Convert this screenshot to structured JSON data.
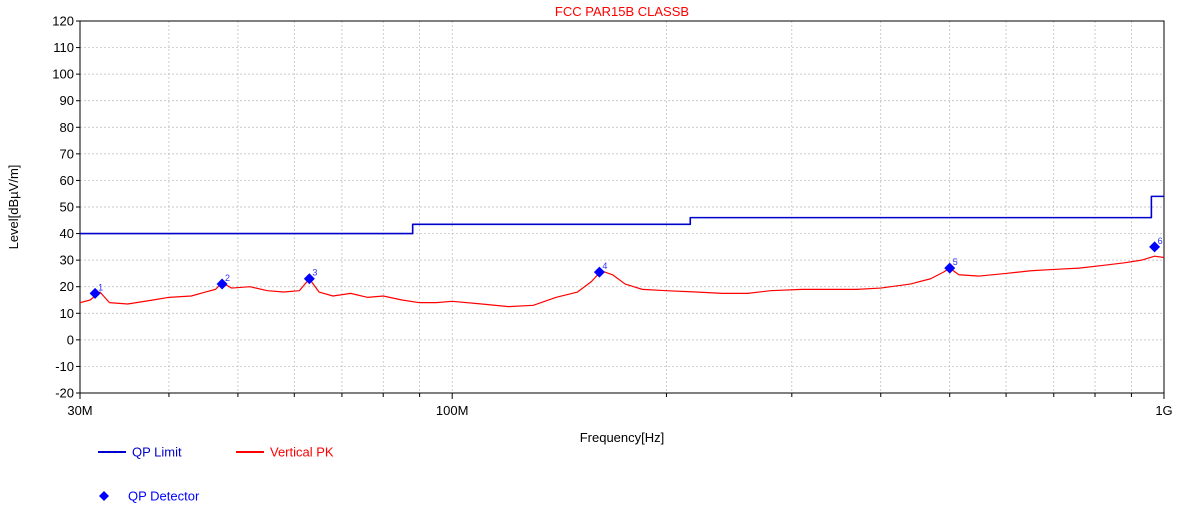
{
  "chart_data": {
    "type": "line",
    "title": "FCC PAR15B CLASSB",
    "xlabel": "Frequency[Hz]",
    "ylabel": "Level[dBµV/m]",
    "x_scale": "log",
    "xlim": [
      30000000,
      1000000000
    ],
    "ylim": [
      -20,
      120
    ],
    "y_ticks": [
      -20,
      -10,
      0,
      10,
      20,
      30,
      40,
      50,
      60,
      70,
      80,
      90,
      100,
      110,
      120
    ],
    "x_ticks": [
      {
        "value": 30000000,
        "label": "30M"
      },
      {
        "value": 100000000,
        "label": "100M"
      },
      {
        "value": 1000000000,
        "label": "1G"
      }
    ],
    "x_minor_ticks": [
      40000000,
      50000000,
      60000000,
      70000000,
      80000000,
      90000000,
      200000000,
      300000000,
      400000000,
      500000000,
      600000000,
      700000000,
      800000000,
      900000000
    ],
    "grid": true,
    "colors": {
      "limit": "#0000cc",
      "peak": "#ff0000",
      "detector": "#0000ff",
      "title": "#ff0000"
    },
    "series": [
      {
        "name": "QP Limit",
        "kind": "step",
        "points": [
          [
            30000000,
            40
          ],
          [
            88000000,
            40
          ],
          [
            88000000,
            43.5
          ],
          [
            216000000,
            43.5
          ],
          [
            216000000,
            46
          ],
          [
            960000000,
            46
          ],
          [
            960000000,
            54
          ],
          [
            1000000000,
            54
          ]
        ]
      },
      {
        "name": "Vertical PK",
        "kind": "line",
        "points": [
          [
            30000000,
            14
          ],
          [
            31000000,
            15
          ],
          [
            32000000,
            18
          ],
          [
            33000000,
            14
          ],
          [
            35000000,
            13.5
          ],
          [
            38000000,
            15
          ],
          [
            40000000,
            16
          ],
          [
            43000000,
            16.5
          ],
          [
            45000000,
            18
          ],
          [
            46500000,
            19
          ],
          [
            47500000,
            21.5
          ],
          [
            49000000,
            19.5
          ],
          [
            52000000,
            20
          ],
          [
            55000000,
            18.5
          ],
          [
            58000000,
            18
          ],
          [
            61000000,
            18.5
          ],
          [
            63000000,
            23
          ],
          [
            65000000,
            18
          ],
          [
            68000000,
            16.5
          ],
          [
            72000000,
            17.5
          ],
          [
            76000000,
            16
          ],
          [
            80000000,
            16.5
          ],
          [
            85000000,
            15
          ],
          [
            90000000,
            14
          ],
          [
            95000000,
            14
          ],
          [
            100000000,
            14.5
          ],
          [
            110000000,
            13.5
          ],
          [
            120000000,
            12.5
          ],
          [
            130000000,
            13
          ],
          [
            140000000,
            16
          ],
          [
            150000000,
            18
          ],
          [
            157000000,
            22
          ],
          [
            162000000,
            26
          ],
          [
            168000000,
            24.5
          ],
          [
            175000000,
            21
          ],
          [
            185000000,
            19
          ],
          [
            200000000,
            18.5
          ],
          [
            220000000,
            18
          ],
          [
            240000000,
            17.5
          ],
          [
            260000000,
            17.5
          ],
          [
            280000000,
            18.5
          ],
          [
            310000000,
            19
          ],
          [
            340000000,
            19
          ],
          [
            370000000,
            19
          ],
          [
            400000000,
            19.5
          ],
          [
            440000000,
            21
          ],
          [
            470000000,
            23
          ],
          [
            490000000,
            25.5
          ],
          [
            500000000,
            27
          ],
          [
            515000000,
            24.5
          ],
          [
            550000000,
            24
          ],
          [
            600000000,
            25
          ],
          [
            650000000,
            26
          ],
          [
            700000000,
            26.5
          ],
          [
            760000000,
            27
          ],
          [
            820000000,
            28
          ],
          [
            880000000,
            29
          ],
          [
            930000000,
            30
          ],
          [
            970000000,
            31.5
          ],
          [
            1000000000,
            31
          ]
        ]
      }
    ],
    "detector": {
      "name": "QP Detector",
      "points": [
        {
          "label": "1",
          "x": 31500000,
          "y": 17.5
        },
        {
          "label": "2",
          "x": 47500000,
          "y": 21
        },
        {
          "label": "3",
          "x": 63000000,
          "y": 23
        },
        {
          "label": "4",
          "x": 161000000,
          "y": 25.5
        },
        {
          "label": "5",
          "x": 500000000,
          "y": 27
        },
        {
          "label": "6",
          "x": 970000000,
          "y": 35
        }
      ]
    },
    "legend": [
      {
        "name": "QP Limit",
        "kind": "line",
        "color": "#0000cc"
      },
      {
        "name": "Vertical PK",
        "kind": "line",
        "color": "#ff0000"
      },
      {
        "name": "QP Detector",
        "kind": "diamond",
        "color": "#0000ff"
      }
    ]
  }
}
